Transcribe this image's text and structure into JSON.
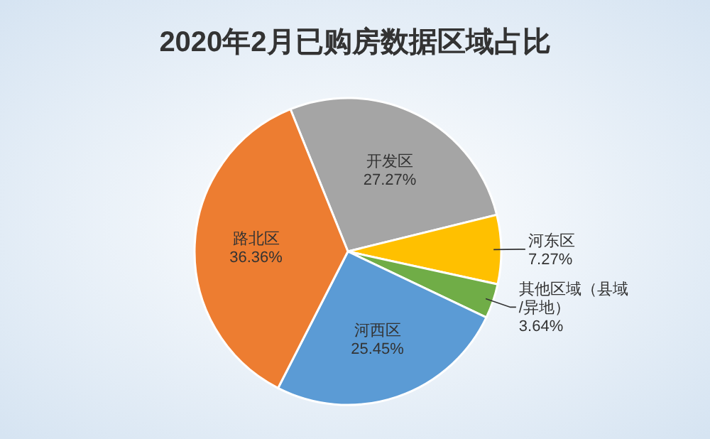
{
  "chart_data": {
    "type": "pie",
    "title": "2020年2月已购房数据区域占比",
    "categories": [
      "开发区",
      "河东区",
      "其他区域（县域\n/异地）",
      "河西区",
      "路北区"
    ],
    "values": [
      27.27,
      7.27,
      3.64,
      25.45,
      36.36
    ],
    "value_labels": [
      "27.27%",
      "7.27%",
      "3.64%",
      "25.45%",
      "36.36%"
    ],
    "colors": [
      "#a5a5a5",
      "#ffc000",
      "#70ad47",
      "#5b9bd5",
      "#ed7d31"
    ],
    "legend": false
  }
}
